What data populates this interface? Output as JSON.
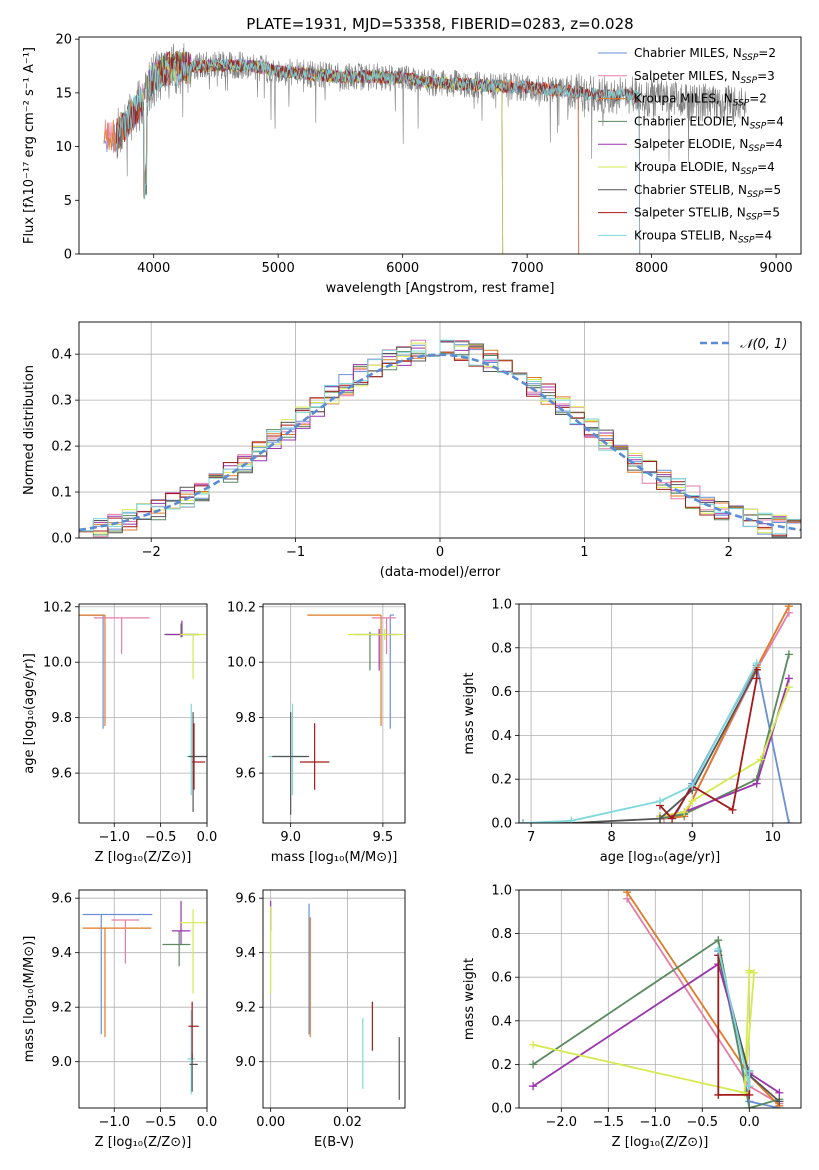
{
  "figure": {
    "title": "PLATE=1931, MJD=53358, FIBERID=0283, z=0.028"
  },
  "colors": {
    "Chabrier MILES": "#6a8fd6",
    "Salpeter MILES": "#e47ea8",
    "Kroupa MILES": "#e07b26",
    "Chabrier ELODIE": "#5a8a5e",
    "Salpeter ELODIE": "#9a35ad",
    "Kroupa ELODIE": "#d6ea50",
    "Chabrier STELIB": "#555555",
    "Salpeter STELIB": "#a41a1a",
    "Kroupa STELIB": "#7ed8dc",
    "normal_curve": "#5b8bd5",
    "spectrum_grey": "#808080"
  },
  "chart_data": [
    {
      "id": "spectrum",
      "type": "line",
      "xlabel": "wavelength [Angstrom, rest frame]",
      "ylabel": "Flux [fλ10⁻¹⁷ erg cm⁻² s⁻¹ A⁻¹]",
      "xlim": [
        3400,
        9200
      ],
      "ylim": [
        0,
        20.2
      ],
      "xticks": [
        4000,
        5000,
        6000,
        7000,
        8000,
        9000
      ],
      "yticks": [
        0,
        5,
        10,
        15,
        20
      ],
      "grid": false,
      "legend_position": "top-right",
      "legend": [
        {
          "series": "Chabrier MILES",
          "label": "Chabrier MILES, N",
          "sub": "SSP",
          "suffix": "=2"
        },
        {
          "series": "Salpeter MILES",
          "label": "Salpeter MILES, N",
          "sub": "SSP",
          "suffix": "=3"
        },
        {
          "series": "Kroupa MILES",
          "label": "Kroupa MILES, N",
          "sub": "SSP",
          "suffix": "=2"
        },
        {
          "series": "Chabrier ELODIE",
          "label": "Chabrier ELODIE, N",
          "sub": "SSP",
          "suffix": "=4"
        },
        {
          "series": "Salpeter ELODIE",
          "label": "Salpeter ELODIE, N",
          "sub": "SSP",
          "suffix": "=4"
        },
        {
          "series": "Kroupa ELODIE",
          "label": "Kroupa ELODIE, N",
          "sub": "SSP",
          "suffix": "=4"
        },
        {
          "series": "Chabrier STELIB",
          "label": "Chabrier STELIB, N",
          "sub": "SSP",
          "suffix": "=5"
        },
        {
          "series": "Salpeter STELIB",
          "label": "Salpeter STELIB, N",
          "sub": "SSP",
          "suffix": "=5"
        },
        {
          "series": "Kroupa STELIB",
          "label": "Kroupa STELIB, N",
          "sub": "SSP",
          "suffix": "=4"
        }
      ],
      "continuum": {
        "x": [
          3700,
          3800,
          3900,
          4000,
          4100,
          4300,
          4500,
          4800,
          5000,
          5200,
          5500,
          5800,
          6000,
          6200,
          6500,
          6800,
          7000,
          7300,
          7600,
          7800,
          8000,
          8300,
          8600,
          9000
        ],
        "y": [
          11.0,
          12.5,
          14.0,
          16.5,
          17.2,
          17.4,
          17.6,
          17.5,
          17.0,
          16.8,
          16.5,
          16.5,
          16.4,
          16.0,
          15.8,
          15.6,
          15.5,
          15.2,
          14.8,
          14.8,
          14.5,
          14.2,
          14.0,
          13.8
        ]
      },
      "model_coverage": {
        "MILES": [
          3600,
          7410
        ],
        "ELODIE": [
          3900,
          6800
        ],
        "STELIB": [
          3700,
          7900
        ]
      }
    },
    {
      "id": "residuals",
      "type": "histogram",
      "xlabel": "(data-model)/error",
      "ylabel": "Normed distribution",
      "xlim": [
        -2.5,
        2.5
      ],
      "ylim": [
        0,
        0.47
      ],
      "xticks": [
        -2,
        -1,
        0,
        1,
        2
      ],
      "yticks": [
        0.0,
        0.1,
        0.2,
        0.3,
        0.4
      ],
      "grid": true,
      "legend": [
        {
          "series": "normal",
          "label": "𝒩(0, 1)"
        }
      ],
      "legend_position": "top-right",
      "bin_width": 0.1
    },
    {
      "id": "age_vs_Z",
      "type": "scatter",
      "xlabel": "Z [log₁₀(Z/Z⊙)]",
      "ylabel": "age  [log₁₀(age/yr)]",
      "xlim": [
        -1.38,
        0.0
      ],
      "ylim": [
        9.42,
        10.21
      ],
      "xticks": [
        -1.0,
        -0.5,
        0.0
      ],
      "yticks": [
        9.6,
        9.8,
        10.0,
        10.2
      ],
      "grid": true,
      "points": [
        {
          "series": "Chabrier MILES",
          "x": -1.12,
          "y": 10.17,
          "xerr": [
            0.52,
            0.0
          ],
          "yerr": [
            0.41,
            0.0
          ]
        },
        {
          "series": "Kroupa MILES",
          "x": -1.1,
          "y": 10.17,
          "xerr": [
            0.6,
            0.0
          ],
          "yerr": [
            0.4,
            0.0
          ]
        },
        {
          "series": "Salpeter MILES",
          "x": -0.92,
          "y": 10.16,
          "xerr": [
            0.3,
            0.3
          ],
          "yerr": [
            0.13,
            0.0
          ]
        },
        {
          "series": "Chabrier ELODIE",
          "x": -0.28,
          "y": 10.1,
          "xerr": [
            0.18,
            0.18
          ],
          "yerr": [
            0.01,
            0.04
          ]
        },
        {
          "series": "Salpeter ELODIE",
          "x": -0.27,
          "y": 10.1,
          "xerr": [
            0.18,
            0.18
          ],
          "yerr": [
            0.01,
            0.05
          ]
        },
        {
          "series": "Kroupa ELODIE",
          "x": -0.15,
          "y": 10.1,
          "xerr": [
            0.14,
            0.14
          ],
          "yerr": [
            0.16,
            0.0
          ]
        },
        {
          "series": "Kroupa STELIB",
          "x": -0.17,
          "y": 9.66,
          "xerr": [
            0.05,
            0.13
          ],
          "yerr": [
            0.14,
            0.19
          ]
        },
        {
          "series": "Chabrier STELIB",
          "x": -0.15,
          "y": 9.66,
          "xerr": [
            0.05,
            0.15
          ],
          "yerr": [
            0.2,
            0.16
          ]
        },
        {
          "series": "Salpeter STELIB",
          "x": -0.14,
          "y": 9.64,
          "xerr": [
            0.02,
            0.12
          ],
          "yerr": [
            0.1,
            0.14
          ]
        }
      ]
    },
    {
      "id": "age_vs_mass",
      "type": "scatter",
      "xlabel": "mass [log₁₀(M/M⊙)]",
      "ylabel": "",
      "xlim": [
        8.85,
        9.62
      ],
      "ylim": [
        9.42,
        10.21
      ],
      "xticks": [
        9.0,
        9.5
      ],
      "yticks": [
        9.6,
        9.8,
        10.0,
        10.2
      ],
      "grid": true,
      "points": [
        {
          "series": "Chabrier MILES",
          "x": 9.54,
          "y": 10.17,
          "xerr": [
            0.0,
            0.02
          ],
          "yerr": [
            0.41,
            0.0
          ]
        },
        {
          "series": "Kroupa MILES",
          "x": 9.49,
          "y": 10.17,
          "xerr": [
            0.4,
            0.0
          ],
          "yerr": [
            0.4,
            0.0
          ]
        },
        {
          "series": "Salpeter MILES",
          "x": 9.52,
          "y": 10.16,
          "xerr": [
            0.08,
            0.05
          ],
          "yerr": [
            0.13,
            0.0
          ]
        },
        {
          "series": "Chabrier ELODIE",
          "x": 9.43,
          "y": 10.1,
          "xerr": [
            0.08,
            0.05
          ],
          "yerr": [
            0.13,
            0.01
          ]
        },
        {
          "series": "Salpeter ELODIE",
          "x": 9.48,
          "y": 10.1,
          "xerr": [
            0.05,
            0.1
          ],
          "yerr": [
            0.13,
            0.02
          ]
        },
        {
          "series": "Kroupa ELODIE",
          "x": 9.51,
          "y": 10.1,
          "xerr": [
            0.2,
            0.1
          ],
          "yerr": [
            0.02,
            0.02
          ]
        },
        {
          "series": "Kroupa STELIB",
          "x": 9.01,
          "y": 9.66,
          "xerr": [
            0.13,
            0.08
          ],
          "yerr": [
            0.14,
            0.19
          ]
        },
        {
          "series": "Chabrier STELIB",
          "x": 9.0,
          "y": 9.66,
          "xerr": [
            0.1,
            0.1
          ],
          "yerr": [
            0.21,
            0.16
          ]
        },
        {
          "series": "Salpeter STELIB",
          "x": 9.13,
          "y": 9.64,
          "xerr": [
            0.08,
            0.08
          ],
          "yerr": [
            0.1,
            0.14
          ]
        }
      ]
    },
    {
      "id": "massweight_vs_age",
      "type": "line",
      "xlabel": "age  [log₁₀(age/yr)]",
      "ylabel": "mass weight",
      "xlim": [
        6.85,
        10.35
      ],
      "ylim": [
        0,
        1
      ],
      "xticks": [
        7,
        8,
        9,
        10
      ],
      "yticks": [
        0.0,
        0.2,
        0.4,
        0.6,
        0.8,
        1.0
      ],
      "grid": true,
      "series": [
        {
          "name": "Chabrier MILES",
          "x": [
            8.6,
            8.8,
            9.0,
            9.8,
            10.2
          ],
          "y": [
            0.03,
            0.04,
            0.18,
            0.72,
            0.0
          ]
        },
        {
          "name": "Salpeter MILES",
          "x": [
            8.65,
            8.9,
            9.8,
            10.2
          ],
          "y": [
            0.02,
            0.03,
            0.7,
            0.96
          ]
        },
        {
          "name": "Kroupa MILES",
          "x": [
            8.6,
            8.9,
            9.8,
            10.2
          ],
          "y": [
            0.02,
            0.03,
            0.71,
            0.99
          ]
        },
        {
          "name": "Chabrier ELODIE",
          "x": [
            8.6,
            8.9,
            9.8,
            10.2
          ],
          "y": [
            0.02,
            0.04,
            0.2,
            0.77
          ]
        },
        {
          "name": "Salpeter ELODIE",
          "x": [
            8.6,
            8.9,
            9.8,
            10.2
          ],
          "y": [
            0.03,
            0.05,
            0.18,
            0.66
          ]
        },
        {
          "name": "Kroupa ELODIE",
          "x": [
            8.6,
            8.9,
            9.0,
            9.85,
            10.2
          ],
          "y": [
            0.03,
            0.05,
            0.1,
            0.29,
            0.62
          ]
        },
        {
          "name": "Chabrier STELIB",
          "x": [
            6.9,
            7.5,
            8.6,
            9.0,
            9.8
          ],
          "y": [
            0.0,
            0.0,
            0.02,
            0.15,
            0.7
          ]
        },
        {
          "name": "Salpeter STELIB",
          "x": [
            8.6,
            8.75,
            9.0,
            9.5,
            9.8,
            9.8
          ],
          "y": [
            0.08,
            0.02,
            0.17,
            0.06,
            0.66,
            0.7
          ]
        },
        {
          "name": "Kroupa STELIB",
          "x": [
            6.9,
            7.5,
            8.6,
            9.0,
            9.8
          ],
          "y": [
            0.0,
            0.01,
            0.1,
            0.17,
            0.73
          ]
        }
      ]
    },
    {
      "id": "mass_vs_Z",
      "type": "scatter",
      "xlabel": "Z [log₁₀(Z/Z⊙)]",
      "ylabel": "mass [log₁₀(M/M⊙)]",
      "xlim": [
        -1.38,
        0.0
      ],
      "ylim": [
        8.83,
        9.63
      ],
      "xticks": [
        -1.0,
        -0.5,
        0.0
      ],
      "yticks": [
        9.0,
        9.2,
        9.4,
        9.6
      ],
      "grid": true,
      "points": [
        {
          "series": "Chabrier MILES",
          "x": -1.14,
          "y": 9.54,
          "xerr": [
            0.2,
            0.55
          ],
          "yerr": [
            0.44,
            0.0
          ]
        },
        {
          "series": "Kroupa MILES",
          "x": -1.1,
          "y": 9.49,
          "xerr": [
            0.24,
            0.5
          ],
          "yerr": [
            0.4,
            0.0
          ]
        },
        {
          "series": "Salpeter MILES",
          "x": -0.88,
          "y": 9.52,
          "xerr": [
            0.15,
            0.15
          ],
          "yerr": [
            0.16,
            0.0
          ]
        },
        {
          "series": "Chabrier ELODIE",
          "x": -0.3,
          "y": 9.43,
          "xerr": [
            0.18,
            0.12
          ],
          "yerr": [
            0.08,
            0.05
          ]
        },
        {
          "series": "Salpeter ELODIE",
          "x": -0.28,
          "y": 9.48,
          "xerr": [
            0.1,
            0.1
          ],
          "yerr": [
            0.05,
            0.11
          ]
        },
        {
          "series": "Kroupa ELODIE",
          "x": -0.15,
          "y": 9.51,
          "xerr": [
            0.15,
            0.25
          ],
          "yerr": [
            0.26,
            0.05
          ]
        },
        {
          "series": "Kroupa STELIB",
          "x": -0.17,
          "y": 9.01,
          "xerr": [
            0.04,
            0.04
          ],
          "yerr": [
            0.13,
            0.18
          ]
        },
        {
          "series": "Chabrier STELIB",
          "x": -0.16,
          "y": 8.99,
          "xerr": [
            0.03,
            0.06
          ],
          "yerr": [
            0.1,
            0.04
          ]
        },
        {
          "series": "Salpeter STELIB",
          "x": -0.16,
          "y": 9.13,
          "xerr": [
            0.04,
            0.07
          ],
          "yerr": [
            0.12,
            0.09
          ]
        }
      ]
    },
    {
      "id": "mass_vs_ebv",
      "type": "scatter",
      "xlabel": "E(B-V)",
      "ylabel": "",
      "xlim": [
        -0.002,
        0.035
      ],
      "ylim": [
        8.83,
        9.63
      ],
      "xticks": [
        0.0,
        0.02
      ],
      "yticks": [
        9.0,
        9.2,
        9.4,
        9.6
      ],
      "grid": true,
      "points": [
        {
          "series": "Salpeter ELODIE",
          "x": 0.0,
          "y": 9.53,
          "xerr": [
            0.0,
            0.0
          ],
          "yerr": [
            0.05,
            0.06
          ]
        },
        {
          "series": "Kroupa ELODIE",
          "x": 0.0,
          "y": 9.37,
          "xerr": [
            0.0,
            0.0
          ],
          "yerr": [
            0.12,
            0.2
          ]
        },
        {
          "series": "Chabrier MILES",
          "x": 0.01,
          "y": 9.54,
          "xerr": [
            0.0,
            0.0
          ],
          "yerr": [
            0.44,
            0.04
          ]
        },
        {
          "series": "Kroupa MILES",
          "x": 0.0103,
          "y": 9.49,
          "xerr": [
            0.0,
            0.0
          ],
          "yerr": [
            0.4,
            0.04
          ]
        },
        {
          "series": "Kroupa STELIB",
          "x": 0.024,
          "y": 9.01,
          "xerr": [
            0.0,
            0.0
          ],
          "yerr": [
            0.11,
            0.15
          ]
        },
        {
          "series": "Salpeter STELIB",
          "x": 0.0265,
          "y": 9.13,
          "xerr": [
            0.0,
            0.0
          ],
          "yerr": [
            0.09,
            0.09
          ]
        },
        {
          "series": "Chabrier STELIB",
          "x": 0.0335,
          "y": 8.99,
          "xerr": [
            0.0,
            0.0
          ],
          "yerr": [
            0.13,
            0.1
          ]
        }
      ]
    },
    {
      "id": "massweight_vs_Z",
      "type": "line",
      "xlabel": "Z [log₁₀(Z/Z⊙)]",
      "ylabel": "mass weight",
      "xlim": [
        -2.45,
        0.55
      ],
      "ylim": [
        0,
        1
      ],
      "xticks": [
        -2.0,
        -1.5,
        -1.0,
        -0.5,
        0.0
      ],
      "yticks": [
        0.0,
        0.2,
        0.4,
        0.6,
        0.8,
        1.0
      ],
      "grid": true,
      "series": [
        {
          "name": "Chabrier MILES",
          "x": [
            -0.33,
            0.0,
            0.32
          ],
          "y": [
            0.72,
            0.03,
            0.0
          ]
        },
        {
          "name": "Salpeter MILES",
          "x": [
            -1.3,
            0.0,
            0.32
          ],
          "y": [
            0.96,
            0.1,
            0.02
          ]
        },
        {
          "name": "Kroupa MILES",
          "x": [
            -1.3,
            0.0,
            0.32
          ],
          "y": [
            0.99,
            0.15,
            0.01
          ]
        },
        {
          "name": "Chabrier ELODIE",
          "x": [
            -2.3,
            -0.33,
            0.0,
            0.32
          ],
          "y": [
            0.2,
            0.77,
            0.0,
            0.04
          ]
        },
        {
          "name": "Salpeter ELODIE",
          "x": [
            -2.3,
            -0.33,
            0.0,
            0.32
          ],
          "y": [
            0.1,
            0.66,
            0.16,
            0.07
          ]
        },
        {
          "name": "Kroupa ELODIE",
          "x": [
            -2.3,
            -0.05,
            0.0,
            0.0,
            0.05,
            -0.05
          ],
          "y": [
            0.29,
            0.07,
            0.62,
            0.63,
            0.62,
            0.07
          ]
        },
        {
          "name": "Chabrier STELIB",
          "x": [
            -0.33,
            0.0,
            0.32
          ],
          "y": [
            0.7,
            0.15,
            0.03
          ]
        },
        {
          "name": "Salpeter STELIB",
          "x": [
            -0.33,
            -0.33,
            0.0,
            0.0
          ],
          "y": [
            0.7,
            0.06,
            0.06,
            0.17
          ]
        },
        {
          "name": "Kroupa STELIB",
          "x": [
            -0.33,
            0.0,
            0.0
          ],
          "y": [
            0.73,
            0.1,
            0.17
          ]
        }
      ]
    }
  ]
}
